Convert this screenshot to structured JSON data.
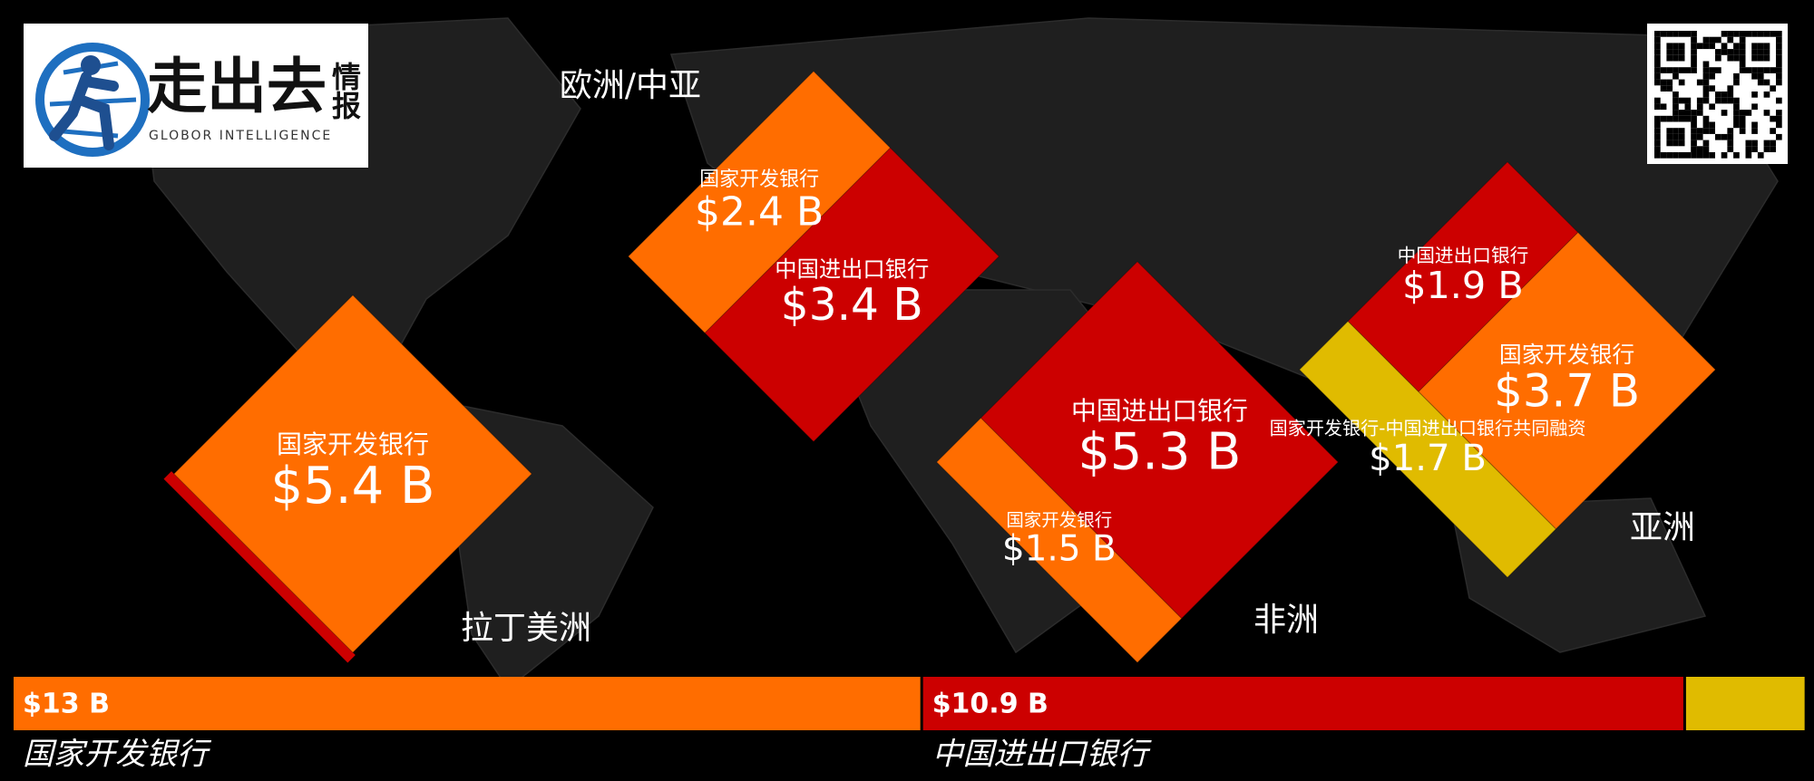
{
  "logo": {
    "name": "走出去",
    "tag": "情报",
    "subtitle": "GLOBOR INTELLIGENCE"
  },
  "chart_data": {
    "type": "diamond",
    "regions": [
      {
        "name": "拉丁美洲",
        "segments": [
          {
            "name": "国家开发银行",
            "value": 5.4,
            "value_label": "$5.4 B",
            "color": "#ff6d00"
          }
        ]
      },
      {
        "name": "欧洲/中亚",
        "segments": [
          {
            "name": "国家开发银行",
            "value": 2.4,
            "value_label": "$2.4 B",
            "color": "#ff6d00"
          },
          {
            "name": "中国进出口银行",
            "value": 3.4,
            "value_label": "$3.4 B",
            "color": "#cc0000"
          }
        ]
      },
      {
        "name": "非洲",
        "segments": [
          {
            "name": "国家开发银行",
            "value": 1.5,
            "value_label": "$1.5 B",
            "color": "#ff6d00"
          },
          {
            "name": "中国进出口银行",
            "value": 5.3,
            "value_label": "$5.3 B",
            "color": "#cc0000"
          }
        ]
      },
      {
        "name": "亚洲",
        "segments": [
          {
            "name": "中国进出口银行",
            "value": 1.9,
            "value_label": "$1.9 B",
            "color": "#cc0000"
          },
          {
            "name": "国家开发银行",
            "value": 3.7,
            "value_label": "$3.7 B",
            "color": "#ff6d00"
          },
          {
            "name": "国家开发银行-中国进出口银行共同融资",
            "value": 1.7,
            "value_label": "$1.7 B",
            "color": "#e0bb00"
          }
        ]
      }
    ],
    "totals": [
      {
        "name": "国家开发银行",
        "value": 13,
        "value_label": "$13 B",
        "color": "#ff6d00"
      },
      {
        "name": "中国进出口银行",
        "value": 10.9,
        "value_label": "$10.9 B",
        "color": "#cc0000"
      },
      {
        "value": 1.7,
        "color": "#e0bb00"
      }
    ]
  }
}
